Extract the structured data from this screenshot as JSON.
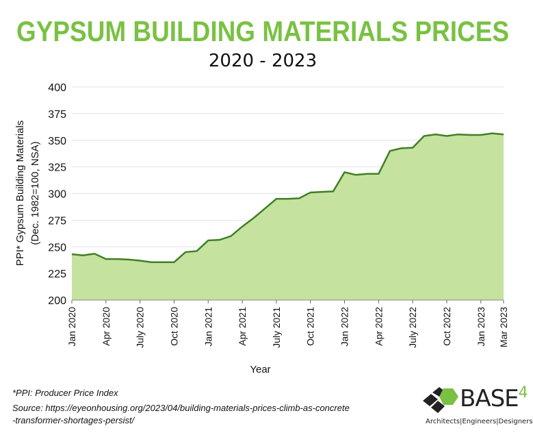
{
  "chart_data": {
    "type": "area",
    "title": "GYPSUM BUILDING MATERIALS PRICES",
    "subtitle": "2020 - 2023",
    "xlabel": "Year",
    "ylabel": "PPI* Gypsum Building Materials",
    "ylabel2": "(Dec. 1982=100, NSA)",
    "ylim": [
      200,
      400
    ],
    "yticks": [
      200,
      225,
      250,
      275,
      300,
      325,
      350,
      375,
      400
    ],
    "xtick_labels": [
      "Jan 2020",
      "Apr 2020",
      "July 2020",
      "Oct 2020",
      "Jan 2021",
      "Apr 2021",
      "July 2021",
      "Oct 2021",
      "Jan 2022",
      "Apr 2022",
      "July 2022",
      "Oct 2022",
      "Jan 2023",
      "Mar 2023"
    ],
    "x": [
      "2020-01",
      "2020-02",
      "2020-03",
      "2020-04",
      "2020-05",
      "2020-06",
      "2020-07",
      "2020-08",
      "2020-09",
      "2020-10",
      "2020-11",
      "2020-12",
      "2021-01",
      "2021-02",
      "2021-03",
      "2021-04",
      "2021-05",
      "2021-06",
      "2021-07",
      "2021-08",
      "2021-09",
      "2021-10",
      "2021-11",
      "2021-12",
      "2022-01",
      "2022-02",
      "2022-03",
      "2022-04",
      "2022-05",
      "2022-06",
      "2022-07",
      "2022-08",
      "2022-09",
      "2022-10",
      "2022-11",
      "2022-12",
      "2023-01",
      "2023-02",
      "2023-03"
    ],
    "values": [
      243,
      242,
      243.5,
      238.5,
      238.5,
      238,
      237,
      235.5,
      235.5,
      235.5,
      245,
      246,
      256,
      256.5,
      260,
      269,
      277,
      286,
      295,
      295,
      295.5,
      301,
      301.5,
      302,
      320,
      317.5,
      318.5,
      318.5,
      340,
      342.5,
      343,
      354,
      355.5,
      354,
      355.5,
      355,
      355,
      356.5,
      355.5
    ],
    "grid": true,
    "colors": {
      "fill": "#c5e29f",
      "line": "#3f7f23",
      "title": "#7ac143"
    }
  },
  "footnote": "*PPI: Producer Price Index",
  "source_line1": "Source: https://eyeonhousing.org/2023/04/building-materials-prices-climb-as-concrete",
  "source_line2": "-transformer-shortages-persist/",
  "logo": {
    "name": "BASE",
    "number": "4",
    "tagline": "Architects|Engineers|Designers"
  }
}
